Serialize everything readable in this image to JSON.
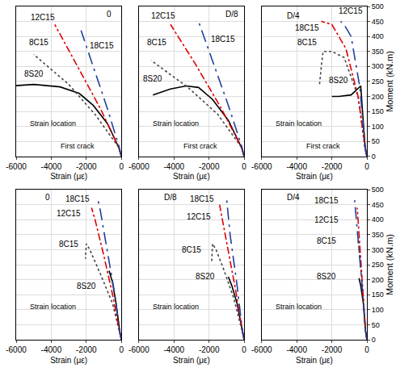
{
  "chart_data": [
    {
      "type": "line",
      "x_label": "Strain (με)",
      "xlim": [
        -6000,
        0
      ],
      "xticks": [
        -6000,
        -4000,
        -2000,
        0
      ],
      "ylim": [
        0,
        500
      ],
      "yticks": [
        0,
        50,
        100,
        150,
        200,
        250,
        300,
        350,
        400,
        450,
        500
      ],
      "grid": true,
      "tick_labels": "x",
      "series": [
        {
          "name": "8S20",
          "color": "#000000",
          "line_style": "solid",
          "x": [
            0,
            -150,
            -800,
            -1600,
            -2400,
            -3500,
            -5000,
            -6000
          ],
          "values": [
            0,
            30,
            110,
            170,
            210,
            232,
            240,
            236
          ]
        },
        {
          "name": "8C15",
          "color": "#444444",
          "line_style": "dot",
          "x": [
            0,
            -150,
            -1500,
            -3000,
            -5000
          ],
          "values": [
            0,
            30,
            140,
            240,
            340
          ]
        },
        {
          "name": "12C15",
          "color": "#e00000",
          "line_style": "dashdot",
          "x": [
            0,
            -150,
            -1200,
            -2500,
            -3800
          ],
          "values": [
            0,
            30,
            160,
            300,
            440
          ]
        },
        {
          "name": "18C15",
          "color": "#1f3f9f",
          "line_style": "longdashdot",
          "x": [
            0,
            -120,
            -800,
            -1600,
            -2300
          ],
          "values": [
            0,
            30,
            160,
            300,
            420
          ]
        }
      ],
      "annotations": [
        {
          "text": "0",
          "x": -700,
          "y": 475
        },
        {
          "text": "12C15",
          "x": -4500,
          "y": 465
        },
        {
          "text": "18C15",
          "x": -1100,
          "y": 370
        },
        {
          "text": "8C15",
          "x": -4700,
          "y": 380
        },
        {
          "text": "8S20",
          "x": -5000,
          "y": 275
        },
        {
          "text": "First crack",
          "x": -2500,
          "y": 35
        },
        {
          "text": "Strain location",
          "x": -3900,
          "y": 110
        }
      ]
    },
    {
      "type": "line",
      "x_label": "Strain (με)",
      "xlim": [
        -6000,
        0
      ],
      "xticks": [
        -6000,
        -4000,
        -2000,
        0
      ],
      "ylim": [
        0,
        500
      ],
      "yticks": [
        0,
        50,
        100,
        150,
        200,
        250,
        300,
        350,
        400,
        450,
        500
      ],
      "grid": true,
      "tick_labels": "x",
      "series": [
        {
          "name": "8S20",
          "color": "#000000",
          "line_style": "solid",
          "x": [
            0,
            -150,
            -900,
            -1800,
            -2600,
            -3300,
            -4200,
            -5200
          ],
          "values": [
            0,
            30,
            120,
            190,
            230,
            235,
            225,
            205
          ]
        },
        {
          "name": "8C15",
          "color": "#444444",
          "line_style": "dot",
          "x": [
            0,
            -150,
            -1500,
            -3200,
            -5300
          ],
          "values": [
            0,
            30,
            140,
            230,
            320
          ]
        },
        {
          "name": "12C15",
          "color": "#e00000",
          "line_style": "dashdot",
          "x": [
            0,
            -150,
            -1300,
            -2800,
            -4200
          ],
          "values": [
            0,
            30,
            160,
            310,
            440
          ]
        },
        {
          "name": "18C15",
          "color": "#1f3f9f",
          "line_style": "longdashdot",
          "x": [
            0,
            -120,
            -900,
            -1800,
            -2600
          ],
          "values": [
            0,
            30,
            170,
            320,
            450
          ]
        }
      ],
      "annotations": [
        {
          "text": "D/8",
          "x": -700,
          "y": 475
        },
        {
          "text": "12C15",
          "x": -4600,
          "y": 470
        },
        {
          "text": "18C15",
          "x": -1200,
          "y": 390
        },
        {
          "text": "8C15",
          "x": -5000,
          "y": 380
        },
        {
          "text": "8S20",
          "x": -5200,
          "y": 260
        },
        {
          "text": "First crack",
          "x": -2500,
          "y": 35
        },
        {
          "text": "Strain location",
          "x": -3900,
          "y": 110
        }
      ]
    },
    {
      "type": "line",
      "x_label": "Strain (με)",
      "y_label": "Moment (kN.m)",
      "xlim": [
        -6000,
        0
      ],
      "xticks": [
        -6000,
        -4000,
        -2000,
        0
      ],
      "ylim": [
        0,
        500
      ],
      "yticks": [
        0,
        50,
        100,
        150,
        200,
        250,
        300,
        350,
        400,
        450,
        500
      ],
      "grid": true,
      "tick_labels": true,
      "series": [
        {
          "name": "8S20",
          "color": "#000000",
          "line_style": "solid",
          "x": [
            0,
            -100,
            -250,
            -350,
            -900,
            -1600,
            -2000
          ],
          "values": [
            0,
            30,
            150,
            235,
            205,
            200,
            200
          ]
        },
        {
          "name": "8C15",
          "color": "#444444",
          "line_style": "dot",
          "x": [
            0,
            -120,
            -500,
            -1300,
            -2000,
            -2500,
            -2600,
            -2700
          ],
          "values": [
            0,
            30,
            200,
            330,
            350,
            350,
            300,
            240
          ]
        },
        {
          "name": "12C15",
          "color": "#e00000",
          "line_style": "dashdot",
          "x": [
            0,
            -100,
            -500,
            -1200,
            -2000,
            -2600
          ],
          "values": [
            0,
            30,
            200,
            360,
            440,
            450
          ]
        },
        {
          "name": "18C15",
          "color": "#1f3f9f",
          "line_style": "longdashdot",
          "x": [
            0,
            -100,
            -400,
            -900,
            -1300,
            -1500
          ],
          "values": [
            0,
            30,
            230,
            400,
            440,
            450
          ]
        }
      ],
      "annotations": [
        {
          "text": "D/4",
          "x": -4200,
          "y": 470
        },
        {
          "text": "12C15",
          "x": -900,
          "y": 485
        },
        {
          "text": "18C15",
          "x": -3400,
          "y": 430
        },
        {
          "text": "8C15",
          "x": -3400,
          "y": 380
        },
        {
          "text": "8S20",
          "x": -1600,
          "y": 255
        },
        {
          "text": "First crack",
          "x": -2500,
          "y": 35
        },
        {
          "text": "Strain location",
          "x": -3900,
          "y": 110
        }
      ]
    },
    {
      "type": "line",
      "x_label": "Strain (με)",
      "xlim": [
        -6000,
        0
      ],
      "xticks": [
        -6000,
        -4000,
        -2000,
        0
      ],
      "ylim": [
        0,
        500
      ],
      "yticks": [
        0,
        50,
        100,
        150,
        200,
        250,
        300,
        350,
        400,
        450,
        500
      ],
      "grid": true,
      "tick_labels": "x",
      "series": [
        {
          "name": "8S20",
          "color": "#000000",
          "line_style": "solid",
          "x": [
            0,
            -100,
            -300,
            -500,
            -700
          ],
          "values": [
            0,
            30,
            120,
            190,
            230
          ]
        },
        {
          "name": "8C15",
          "color": "#444444",
          "line_style": "dot",
          "x": [
            0,
            -120,
            -500,
            -1200,
            -1800,
            -2000,
            -2050
          ],
          "values": [
            0,
            30,
            120,
            220,
            300,
            320,
            270
          ]
        },
        {
          "name": "12C15",
          "color": "#e00000",
          "line_style": "dashdot",
          "x": [
            0,
            -120,
            -500,
            -1000,
            -1500,
            -1700
          ],
          "values": [
            0,
            30,
            150,
            280,
            400,
            440
          ]
        },
        {
          "name": "18C15",
          "color": "#1f3f9f",
          "line_style": "longdashdot",
          "x": [
            0,
            -100,
            -400,
            -800,
            -1200,
            -1350
          ],
          "values": [
            0,
            30,
            160,
            300,
            430,
            470
          ]
        }
      ],
      "annotations": [
        {
          "text": "0",
          "x": -4200,
          "y": 475
        },
        {
          "text": "18C15",
          "x": -2500,
          "y": 470
        },
        {
          "text": "12C15",
          "x": -3000,
          "y": 420
        },
        {
          "text": "8C15",
          "x": -3000,
          "y": 320
        },
        {
          "text": "8S20",
          "x": -2000,
          "y": 180
        },
        {
          "text": "Strain location",
          "x": -3900,
          "y": 110
        }
      ]
    },
    {
      "type": "line",
      "x_label": "Strain (με)",
      "xlim": [
        -6000,
        0
      ],
      "xticks": [
        -6000,
        -4000,
        -2000,
        0
      ],
      "ylim": [
        0,
        500
      ],
      "yticks": [
        0,
        50,
        100,
        150,
        200,
        250,
        300,
        350,
        400,
        450,
        500
      ],
      "grid": true,
      "tick_labels": "x",
      "series": [
        {
          "name": "8S20",
          "color": "#000000",
          "line_style": "solid",
          "x": [
            0,
            -100,
            -400,
            -700,
            -900
          ],
          "values": [
            0,
            30,
            120,
            180,
            210
          ]
        },
        {
          "name": "8C15",
          "color": "#444444",
          "line_style": "dot",
          "x": [
            0,
            -120,
            -600,
            -1200,
            -1600,
            -1800,
            -1850
          ],
          "values": [
            0,
            30,
            140,
            240,
            300,
            320,
            260
          ]
        },
        {
          "name": "12C15",
          "color": "#e00000",
          "line_style": "dashdot",
          "x": [
            0,
            -100,
            -500,
            -1000,
            -1300,
            -1400
          ],
          "values": [
            0,
            30,
            170,
            330,
            420,
            450
          ]
        },
        {
          "name": "18C15",
          "color": "#1f3f9f",
          "line_style": "longdashdot",
          "x": [
            0,
            -100,
            -400,
            -800,
            -1000
          ],
          "values": [
            0,
            30,
            180,
            350,
            470
          ]
        }
      ],
      "annotations": [
        {
          "text": "D/8",
          "x": -4200,
          "y": 475
        },
        {
          "text": "18C15",
          "x": -2400,
          "y": 470
        },
        {
          "text": "12C15",
          "x": -2600,
          "y": 410
        },
        {
          "text": "8C15",
          "x": -3000,
          "y": 300
        },
        {
          "text": "8S20",
          "x": -2200,
          "y": 210
        },
        {
          "text": "Strain location",
          "x": -3900,
          "y": 110
        }
      ]
    },
    {
      "type": "line",
      "x_label": "Strain (με)",
      "y_label": "Moment (kN.m)",
      "xlim": [
        -6000,
        0
      ],
      "xticks": [
        -6000,
        -4000,
        -2000,
        0
      ],
      "ylim": [
        0,
        500
      ],
      "yticks": [
        0,
        50,
        100,
        150,
        200,
        250,
        300,
        350,
        400,
        450,
        500
      ],
      "grid": true,
      "tick_labels": true,
      "series": [
        {
          "name": "8S20",
          "color": "#000000",
          "line_style": "solid",
          "x": [
            0,
            -80,
            -200,
            -350,
            -450
          ],
          "values": [
            0,
            30,
            120,
            180,
            205
          ]
        },
        {
          "name": "8C15",
          "color": "#444444",
          "line_style": "dot",
          "x": [
            0,
            -80,
            -200,
            -350,
            -450,
            -500
          ],
          "values": [
            0,
            30,
            140,
            250,
            320,
            335
          ]
        },
        {
          "name": "12C15",
          "color": "#e00000",
          "line_style": "dashdot",
          "x": [
            0,
            -80,
            -250,
            -450,
            -550
          ],
          "values": [
            0,
            30,
            180,
            360,
            440
          ]
        },
        {
          "name": "18C15",
          "color": "#1f3f9f",
          "line_style": "longdashdot",
          "x": [
            0,
            -80,
            -300,
            -550,
            -700
          ],
          "values": [
            0,
            30,
            200,
            380,
            465
          ]
        }
      ],
      "annotations": [
        {
          "text": "D/4",
          "x": -4200,
          "y": 475
        },
        {
          "text": "18C15",
          "x": -2300,
          "y": 465
        },
        {
          "text": "12C15",
          "x": -2300,
          "y": 400
        },
        {
          "text": "8C15",
          "x": -2300,
          "y": 330
        },
        {
          "text": "8S20",
          "x": -2300,
          "y": 210
        },
        {
          "text": "Strain location",
          "x": -3900,
          "y": 110
        }
      ]
    }
  ]
}
